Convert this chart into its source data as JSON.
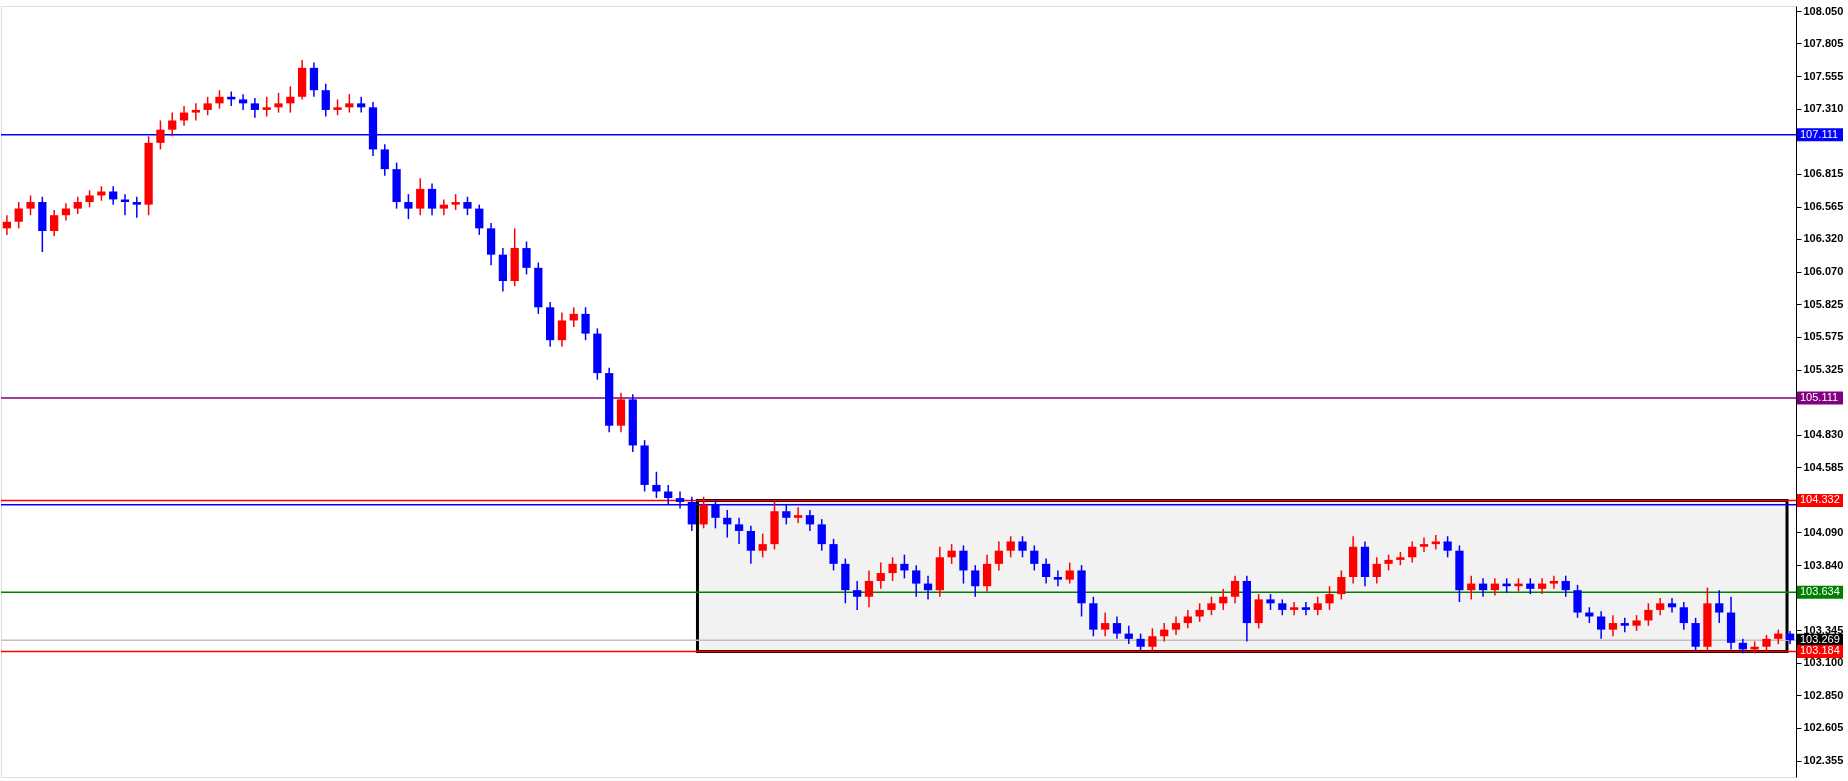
{
  "chart_data": {
    "type": "candlestick",
    "categories": [
      null,
      null,
      null,
      null,
      null,
      null,
      null,
      null,
      null,
      null,
      null,
      null,
      null,
      null,
      null,
      null,
      null,
      null,
      null,
      null,
      null,
      null,
      null,
      null,
      null,
      null,
      null,
      null,
      null,
      null,
      null,
      null,
      null,
      null,
      null,
      null,
      null,
      null,
      null,
      null,
      null,
      null,
      null,
      null,
      null,
      null,
      null,
      null,
      null,
      null,
      null,
      null,
      null,
      null,
      null,
      null,
      null,
      null,
      null,
      null,
      null,
      null,
      null,
      null,
      null,
      null,
      null,
      null,
      null,
      null,
      null,
      null,
      null,
      null,
      null,
      null,
      null,
      null,
      null,
      null,
      null,
      null,
      null,
      null,
      null,
      null,
      null,
      null,
      null,
      null,
      null,
      null,
      null,
      null,
      null,
      null,
      null,
      null,
      null,
      null,
      null,
      null,
      null,
      null,
      null,
      null,
      null,
      null,
      null,
      null,
      null,
      null,
      null,
      null,
      null,
      null,
      null,
      null,
      null,
      null,
      null,
      null,
      null,
      null,
      null,
      null,
      null,
      null,
      null,
      null,
      null,
      null,
      null,
      null,
      null,
      null,
      null,
      null,
      null,
      null,
      null,
      null,
      null,
      null,
      null,
      null,
      null,
      null,
      null,
      null,
      null,
      null
    ],
    "ohlc": [
      [
        106.4,
        106.5,
        106.35,
        106.45
      ],
      [
        106.45,
        106.6,
        106.4,
        106.55
      ],
      [
        106.55,
        106.65,
        106.5,
        106.6
      ],
      [
        106.6,
        106.64,
        106.22,
        106.38
      ],
      [
        106.38,
        106.54,
        106.34,
        106.5
      ],
      [
        106.5,
        106.59,
        106.46,
        106.55
      ],
      [
        106.55,
        106.64,
        106.51,
        106.6
      ],
      [
        106.6,
        106.69,
        106.56,
        106.65
      ],
      [
        106.65,
        106.72,
        106.61,
        106.68
      ],
      [
        106.68,
        106.72,
        106.58,
        106.62
      ],
      [
        106.62,
        106.66,
        106.5,
        106.6
      ],
      [
        106.6,
        106.64,
        106.48,
        106.58
      ],
      [
        106.58,
        107.1,
        106.5,
        107.05
      ],
      [
        107.05,
        107.22,
        107.0,
        107.15
      ],
      [
        107.15,
        107.28,
        107.1,
        107.22
      ],
      [
        107.22,
        107.33,
        107.18,
        107.28
      ],
      [
        107.28,
        107.35,
        107.22,
        107.3
      ],
      [
        107.3,
        107.4,
        107.26,
        107.35
      ],
      [
        107.35,
        107.45,
        107.31,
        107.4
      ],
      [
        107.4,
        107.44,
        107.33,
        107.38
      ],
      [
        107.38,
        107.42,
        107.3,
        107.35
      ],
      [
        107.35,
        107.39,
        107.24,
        107.3
      ],
      [
        107.3,
        107.4,
        107.25,
        107.32
      ],
      [
        107.32,
        107.43,
        107.28,
        107.35
      ],
      [
        107.35,
        107.48,
        107.28,
        107.4
      ],
      [
        107.4,
        107.68,
        107.38,
        107.62
      ],
      [
        107.62,
        107.66,
        107.4,
        107.45
      ],
      [
        107.45,
        107.5,
        107.25,
        107.3
      ],
      [
        107.3,
        107.38,
        107.26,
        107.32
      ],
      [
        107.32,
        107.42,
        107.28,
        107.35
      ],
      [
        107.35,
        107.4,
        107.28,
        107.32
      ],
      [
        107.32,
        107.36,
        106.95,
        107.0
      ],
      [
        107.0,
        107.04,
        106.8,
        106.85
      ],
      [
        106.85,
        106.9,
        106.55,
        106.6
      ],
      [
        106.6,
        106.66,
        106.47,
        106.55
      ],
      [
        106.55,
        106.78,
        106.5,
        106.7
      ],
      [
        106.7,
        106.74,
        106.5,
        106.55
      ],
      [
        106.55,
        106.62,
        106.5,
        106.58
      ],
      [
        106.58,
        106.66,
        106.54,
        106.6
      ],
      [
        106.6,
        106.64,
        106.5,
        106.55
      ],
      [
        106.55,
        106.58,
        106.35,
        106.4
      ],
      [
        106.4,
        106.44,
        106.12,
        106.2
      ],
      [
        106.2,
        106.25,
        105.92,
        106.0
      ],
      [
        106.0,
        106.4,
        105.96,
        106.25
      ],
      [
        106.25,
        106.3,
        106.05,
        106.1
      ],
      [
        106.1,
        106.14,
        105.75,
        105.8
      ],
      [
        105.8,
        105.84,
        105.5,
        105.55
      ],
      [
        105.55,
        105.76,
        105.5,
        105.7
      ],
      [
        105.7,
        105.8,
        105.65,
        105.75
      ],
      [
        105.75,
        105.8,
        105.55,
        105.6
      ],
      [
        105.6,
        105.64,
        105.25,
        105.3
      ],
      [
        105.3,
        105.34,
        104.85,
        104.9
      ],
      [
        104.9,
        105.15,
        104.85,
        105.1
      ],
      [
        105.1,
        105.14,
        104.7,
        104.75
      ],
      [
        104.75,
        104.79,
        104.4,
        104.45
      ],
      [
        104.45,
        104.55,
        104.35,
        104.4
      ],
      [
        104.4,
        104.45,
        104.3,
        104.35
      ],
      [
        104.35,
        104.4,
        104.27,
        104.32
      ],
      [
        104.32,
        104.36,
        104.1,
        104.15
      ],
      [
        104.15,
        104.36,
        104.12,
        104.3
      ],
      [
        104.3,
        104.34,
        104.12,
        104.2
      ],
      [
        104.2,
        104.26,
        104.05,
        104.15
      ],
      [
        104.15,
        104.2,
        104.0,
        104.1
      ],
      [
        104.1,
        104.14,
        103.85,
        103.95
      ],
      [
        103.95,
        104.08,
        103.9,
        104.0
      ],
      [
        104.0,
        104.32,
        103.96,
        104.25
      ],
      [
        104.25,
        104.3,
        104.15,
        104.2
      ],
      [
        104.2,
        104.28,
        104.16,
        104.22
      ],
      [
        104.22,
        104.26,
        104.1,
        104.15
      ],
      [
        104.15,
        104.19,
        103.95,
        104.0
      ],
      [
        104.0,
        104.04,
        103.8,
        103.85
      ],
      [
        103.85,
        103.89,
        103.55,
        103.65
      ],
      [
        103.65,
        103.72,
        103.5,
        103.6
      ],
      [
        103.6,
        103.8,
        103.52,
        103.72
      ],
      [
        103.72,
        103.86,
        103.66,
        103.78
      ],
      [
        103.78,
        103.9,
        103.72,
        103.85
      ],
      [
        103.85,
        103.92,
        103.74,
        103.8
      ],
      [
        103.8,
        103.84,
        103.6,
        103.7
      ],
      [
        103.7,
        103.76,
        103.58,
        103.65
      ],
      [
        103.65,
        103.98,
        103.6,
        103.9
      ],
      [
        103.9,
        104.0,
        103.85,
        103.95
      ],
      [
        103.95,
        103.99,
        103.7,
        103.8
      ],
      [
        103.8,
        103.84,
        103.6,
        103.68
      ],
      [
        103.68,
        103.92,
        103.64,
        103.85
      ],
      [
        103.85,
        104.02,
        103.8,
        103.95
      ],
      [
        103.95,
        104.06,
        103.9,
        104.02
      ],
      [
        104.02,
        104.06,
        103.9,
        103.95
      ],
      [
        103.95,
        103.99,
        103.8,
        103.85
      ],
      [
        103.85,
        103.89,
        103.7,
        103.75
      ],
      [
        103.75,
        103.8,
        103.68,
        103.73
      ],
      [
        103.73,
        103.86,
        103.7,
        103.8
      ],
      [
        103.8,
        103.84,
        103.45,
        103.55
      ],
      [
        103.55,
        103.6,
        103.3,
        103.35
      ],
      [
        103.35,
        103.48,
        103.3,
        103.4
      ],
      [
        103.4,
        103.45,
        103.28,
        103.32
      ],
      [
        103.32,
        103.38,
        103.24,
        103.28
      ],
      [
        103.28,
        103.32,
        103.19,
        103.22
      ],
      [
        103.22,
        103.36,
        103.19,
        103.3
      ],
      [
        103.3,
        103.4,
        103.26,
        103.35
      ],
      [
        103.35,
        103.45,
        103.31,
        103.4
      ],
      [
        103.4,
        103.5,
        103.36,
        103.45
      ],
      [
        103.45,
        103.55,
        103.41,
        103.5
      ],
      [
        103.5,
        103.6,
        103.46,
        103.55
      ],
      [
        103.55,
        103.66,
        103.5,
        103.6
      ],
      [
        103.6,
        103.76,
        103.55,
        103.72
      ],
      [
        103.72,
        103.76,
        103.26,
        103.4
      ],
      [
        103.4,
        103.62,
        103.36,
        103.58
      ],
      [
        103.58,
        103.62,
        103.5,
        103.55
      ],
      [
        103.55,
        103.58,
        103.46,
        103.5
      ],
      [
        103.5,
        103.56,
        103.46,
        103.52
      ],
      [
        103.52,
        103.56,
        103.46,
        103.5
      ],
      [
        103.5,
        103.6,
        103.46,
        103.55
      ],
      [
        103.55,
        103.68,
        103.5,
        103.62
      ],
      [
        103.62,
        103.8,
        103.58,
        103.75
      ],
      [
        103.75,
        104.06,
        103.7,
        103.98
      ],
      [
        103.98,
        104.02,
        103.68,
        103.75
      ],
      [
        103.75,
        103.9,
        103.7,
        103.85
      ],
      [
        103.85,
        103.92,
        103.8,
        103.88
      ],
      [
        103.88,
        103.94,
        103.84,
        103.9
      ],
      [
        103.9,
        104.02,
        103.86,
        103.98
      ],
      [
        103.98,
        104.05,
        103.94,
        104.0
      ],
      [
        104.0,
        104.07,
        103.96,
        104.02
      ],
      [
        104.02,
        104.06,
        103.9,
        103.95
      ],
      [
        103.95,
        103.99,
        103.56,
        103.65
      ],
      [
        103.65,
        103.76,
        103.58,
        103.7
      ],
      [
        103.7,
        103.74,
        103.6,
        103.65
      ],
      [
        103.65,
        103.74,
        103.61,
        103.7
      ],
      [
        103.7,
        103.74,
        103.63,
        103.68
      ],
      [
        103.68,
        103.74,
        103.64,
        103.7
      ],
      [
        103.7,
        103.74,
        103.62,
        103.66
      ],
      [
        103.66,
        103.74,
        103.62,
        103.7
      ],
      [
        103.7,
        103.76,
        103.66,
        103.72
      ],
      [
        103.72,
        103.76,
        103.6,
        103.65
      ],
      [
        103.65,
        103.69,
        103.44,
        103.48
      ],
      [
        103.48,
        103.52,
        103.4,
        103.45
      ],
      [
        103.45,
        103.49,
        103.28,
        103.35
      ],
      [
        103.35,
        103.46,
        103.3,
        103.4
      ],
      [
        103.4,
        103.44,
        103.33,
        103.38
      ],
      [
        103.38,
        103.46,
        103.34,
        103.42
      ],
      [
        103.42,
        103.55,
        103.38,
        103.5
      ],
      [
        103.5,
        103.59,
        103.46,
        103.55
      ],
      [
        103.55,
        103.59,
        103.48,
        103.52
      ],
      [
        103.52,
        103.56,
        103.35,
        103.4
      ],
      [
        103.4,
        103.44,
        103.19,
        103.22
      ],
      [
        103.22,
        103.67,
        103.19,
        103.55
      ],
      [
        103.55,
        103.65,
        103.4,
        103.48
      ],
      [
        103.48,
        103.6,
        103.2,
        103.25
      ],
      [
        103.25,
        103.28,
        103.17,
        103.2
      ],
      [
        103.2,
        103.26,
        103.17,
        103.22
      ],
      [
        103.22,
        103.31,
        103.19,
        103.28
      ],
      [
        103.28,
        103.35,
        103.24,
        103.32
      ],
      [
        103.32,
        103.34,
        103.24,
        103.27
      ]
    ],
    "colors": [
      "#ff0000",
      "#ff0000",
      "#ff0000",
      "#0000ff",
      "#ff0000",
      "#ff0000",
      "#ff0000",
      "#ff0000",
      "#ff0000",
      "#0000ff",
      "#0000ff",
      "#0000ff",
      "#ff0000",
      "#ff0000",
      "#ff0000",
      "#ff0000",
      "#ff0000",
      "#ff0000",
      "#ff0000",
      "#0000ff",
      "#0000ff",
      "#0000ff",
      "#ff0000",
      "#ff0000",
      "#ff0000",
      "#ff0000",
      "#0000ff",
      "#0000ff",
      "#ff0000",
      "#ff0000",
      "#0000ff",
      "#0000ff",
      "#0000ff",
      "#0000ff",
      "#0000ff",
      "#ff0000",
      "#0000ff",
      "#ff0000",
      "#ff0000",
      "#0000ff",
      "#0000ff",
      "#0000ff",
      "#0000ff",
      "#ff0000",
      "#0000ff",
      "#0000ff",
      "#0000ff",
      "#ff0000",
      "#ff0000",
      "#0000ff",
      "#0000ff",
      "#0000ff",
      "#ff0000",
      "#0000ff",
      "#0000ff",
      "#0000ff",
      "#0000ff",
      "#0000ff",
      "#0000ff",
      "#ff0000",
      "#0000ff",
      "#0000ff",
      "#0000ff",
      "#0000ff",
      "#ff0000",
      "#ff0000",
      "#0000ff",
      "#ff0000",
      "#0000ff",
      "#0000ff",
      "#0000ff",
      "#0000ff",
      "#0000ff",
      "#ff0000",
      "#ff0000",
      "#ff0000",
      "#0000ff",
      "#0000ff",
      "#0000ff",
      "#ff0000",
      "#ff0000",
      "#0000ff",
      "#0000ff",
      "#ff0000",
      "#ff0000",
      "#ff0000",
      "#0000ff",
      "#0000ff",
      "#0000ff",
      "#0000ff",
      "#ff0000",
      "#0000ff",
      "#0000ff",
      "#ff0000",
      "#0000ff",
      "#0000ff",
      "#0000ff",
      "#ff0000",
      "#ff0000",
      "#ff0000",
      "#ff0000",
      "#ff0000",
      "#ff0000",
      "#ff0000",
      "#ff0000",
      "#0000ff",
      "#ff0000",
      "#0000ff",
      "#0000ff",
      "#ff0000",
      "#0000ff",
      "#ff0000",
      "#ff0000",
      "#ff0000",
      "#ff0000",
      "#0000ff",
      "#ff0000",
      "#ff0000",
      "#ff0000",
      "#ff0000",
      "#ff0000",
      "#ff0000",
      "#0000ff",
      "#0000ff",
      "#ff0000",
      "#0000ff",
      "#ff0000",
      "#0000ff",
      "#ff0000",
      "#0000ff",
      "#ff0000",
      "#ff0000",
      "#0000ff",
      "#0000ff",
      "#0000ff",
      "#0000ff",
      "#ff0000",
      "#0000ff",
      "#ff0000",
      "#ff0000",
      "#ff0000",
      "#0000ff",
      "#0000ff",
      "#0000ff",
      "#ff0000",
      "#0000ff",
      "#0000ff",
      "#0000ff",
      "#ff0000",
      "#ff0000",
      "#ff0000",
      "#0000ff"
    ],
    "ylim": [
      102.23,
      108.09
    ],
    "yticks": [
      {
        "value": 108.05,
        "label": "108.050"
      },
      107.805,
      107.555,
      {
        "value": 107.31,
        "label": "107.310"
      },
      106.815,
      106.565,
      {
        "value": 106.32,
        "label": "106.320"
      },
      {
        "value": 106.07,
        "label": "106.070"
      },
      105.825,
      105.575,
      105.325,
      {
        "value": 104.83,
        "label": "104.830"
      },
      104.585,
      {
        "value": 104.09,
        "label": "104.090"
      },
      {
        "value": 103.84,
        "label": "103.840"
      },
      103.345,
      {
        "value": 103.1,
        "label": "103.100"
      },
      {
        "value": 102.85,
        "label": "102.850"
      },
      102.605,
      102.355
    ],
    "tick_labels": "y",
    "grid": false,
    "ref_lines": [
      {
        "axis": "y",
        "value": 107.111,
        "label": "107.111",
        "color": "#0000ff"
      },
      {
        "axis": "y",
        "value": 105.111,
        "label": "105.111",
        "color": "#800080"
      },
      {
        "axis": "y",
        "value": 104.332,
        "label": "104.332",
        "color": "#ff0000"
      },
      {
        "axis": "y",
        "value": 104.3,
        "color": "#0000ff"
      },
      {
        "axis": "y",
        "value": 103.634,
        "label": "103.634",
        "color": "#008000"
      },
      {
        "axis": "y",
        "value": 103.269,
        "label": "103.269",
        "color": "#c0c0c0"
      },
      {
        "axis": "y",
        "value": 103.184,
        "label": "103.184",
        "color": "#ff0000"
      }
    ],
    "bands": [
      {
        "axis": "y",
        "from": 103.184,
        "to": 104.332,
        "color": "#000000"
      }
    ]
  }
}
